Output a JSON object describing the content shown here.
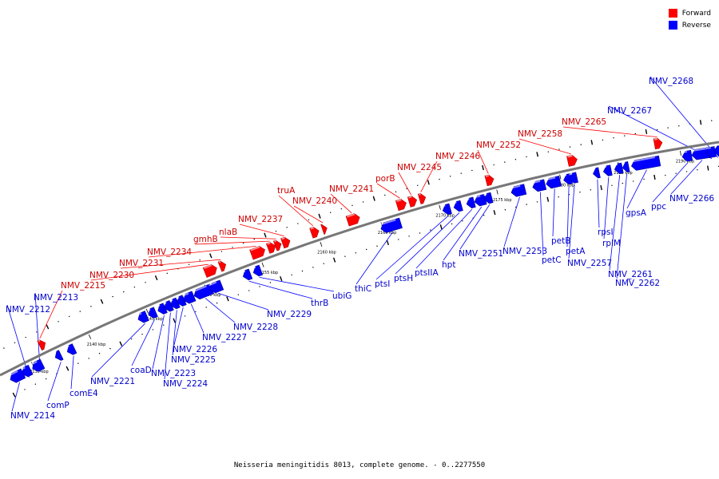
{
  "legend": {
    "forward_label": "Forward",
    "reverse_label": "Reverse",
    "forward_color": "#ff0000",
    "reverse_color": "#0000ff"
  },
  "caption": "Neisseria meningitidis 8013, complete genome. - 0..2277550",
  "backbone_color": "#777777",
  "ruler": {
    "unit": "kbp",
    "ticks_kbp": [
      2135,
      2140,
      2145,
      2150,
      2155,
      2160,
      2165,
      2170,
      2175,
      2180,
      2185,
      2190
    ]
  },
  "genes": [
    {
      "name": "NMV_2212",
      "strand": "reverse"
    },
    {
      "name": "NMV_2213",
      "strand": "reverse"
    },
    {
      "name": "NMV_2214",
      "strand": "reverse"
    },
    {
      "name": "comP",
      "strand": "reverse"
    },
    {
      "name": "comE4",
      "strand": "reverse"
    },
    {
      "name": "NMV_2215",
      "strand": "forward"
    },
    {
      "name": "NMV_2221",
      "strand": "reverse"
    },
    {
      "name": "coaD",
      "strand": "reverse"
    },
    {
      "name": "NMV_2223",
      "strand": "reverse"
    },
    {
      "name": "NMV_2224",
      "strand": "reverse"
    },
    {
      "name": "NMV_2225",
      "strand": "reverse"
    },
    {
      "name": "NMV_2226",
      "strand": "reverse"
    },
    {
      "name": "NMV_2227",
      "strand": "reverse"
    },
    {
      "name": "NMV_2228",
      "strand": "reverse"
    },
    {
      "name": "NMV_2229",
      "strand": "reverse"
    },
    {
      "name": "NMV_2230",
      "strand": "forward"
    },
    {
      "name": "NMV_2231",
      "strand": "forward"
    },
    {
      "name": "NMV_2234",
      "strand": "forward"
    },
    {
      "name": "gmhB",
      "strand": "forward"
    },
    {
      "name": "nlaB",
      "strand": "forward"
    },
    {
      "name": "NMV_2237",
      "strand": "forward"
    },
    {
      "name": "thrB",
      "strand": "reverse"
    },
    {
      "name": "ubiG",
      "strand": "reverse"
    },
    {
      "name": "truA",
      "strand": "forward"
    },
    {
      "name": "NMV_2240",
      "strand": "forward"
    },
    {
      "name": "NMV_2241",
      "strand": "forward"
    },
    {
      "name": "thiC",
      "strand": "reverse"
    },
    {
      "name": "porB",
      "strand": "forward"
    },
    {
      "name": "ptsI",
      "strand": "reverse"
    },
    {
      "name": "ptsH",
      "strand": "reverse"
    },
    {
      "name": "ptsIIA",
      "strand": "reverse"
    },
    {
      "name": "hpt",
      "strand": "reverse"
    },
    {
      "name": "NMV_2245",
      "strand": "forward"
    },
    {
      "name": "NMV_2246",
      "strand": "forward"
    },
    {
      "name": "NMV_2251",
      "strand": "reverse"
    },
    {
      "name": "NMV_2252",
      "strand": "forward"
    },
    {
      "name": "NMV_2253",
      "strand": "reverse"
    },
    {
      "name": "petC",
      "strand": "reverse"
    },
    {
      "name": "petB",
      "strand": "reverse"
    },
    {
      "name": "petA",
      "strand": "reverse"
    },
    {
      "name": "NMV_2257",
      "strand": "reverse"
    },
    {
      "name": "NMV_2258",
      "strand": "forward"
    },
    {
      "name": "rpsI",
      "strand": "reverse"
    },
    {
      "name": "rplM",
      "strand": "reverse"
    },
    {
      "name": "NMV_2261",
      "strand": "reverse"
    },
    {
      "name": "NMV_2262",
      "strand": "reverse"
    },
    {
      "name": "gpsA",
      "strand": "reverse"
    },
    {
      "name": "NMV_2265",
      "strand": "forward"
    },
    {
      "name": "ppc",
      "strand": "reverse"
    },
    {
      "name": "NMV_2266",
      "strand": "reverse"
    },
    {
      "name": "NMV_2267",
      "strand": "reverse"
    },
    {
      "name": "NMV_2268",
      "strand": "reverse"
    }
  ]
}
